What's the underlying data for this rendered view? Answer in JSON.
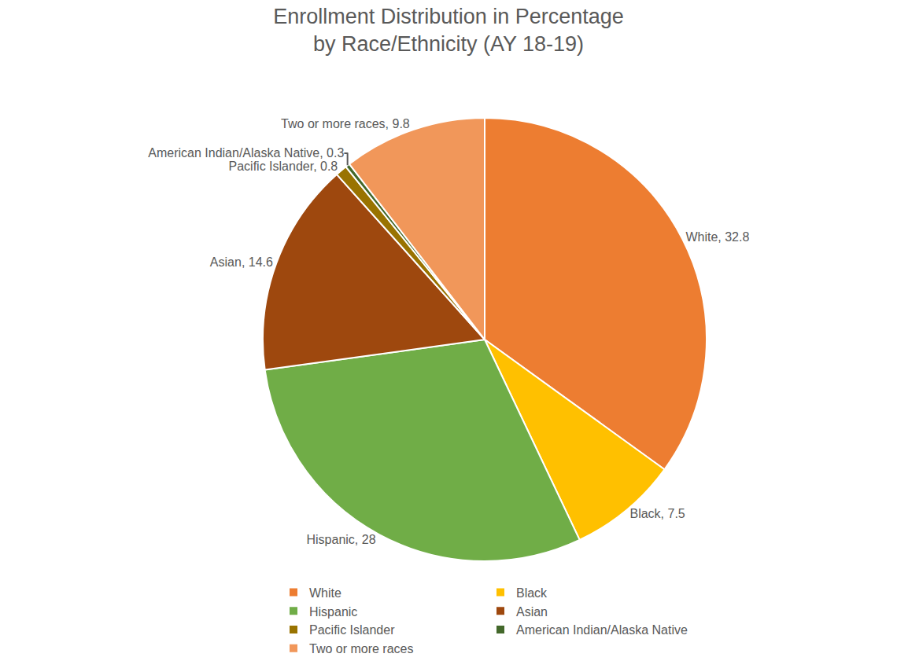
{
  "chart_data": {
    "type": "pie",
    "title": "Enrollment Distribution in Percentage\nby Race/Ethnicity (AY 18-19)",
    "categories": [
      "White",
      "Black",
      "Hispanic",
      "Asian",
      "Pacific Islander",
      "American Indian/Alaska Native",
      "Two or more races"
    ],
    "values": [
      32.8,
      7.5,
      28,
      14.6,
      0.8,
      0.3,
      9.8
    ],
    "value_labels": [
      "White, 32.8",
      "Black, 7.5",
      "Hispanic, 28",
      "Asian, 14.6",
      "Pacific Islander, 0.8",
      "American Indian/Alaska Native, 0.3",
      "Two or more races, 9.8"
    ],
    "colors": [
      "#ED7D31",
      "#FFC000",
      "#70AD47",
      "#9E480E",
      "#997300",
      "#43682B",
      "#F1975A"
    ],
    "data_labels": true,
    "legend": "bottom"
  }
}
